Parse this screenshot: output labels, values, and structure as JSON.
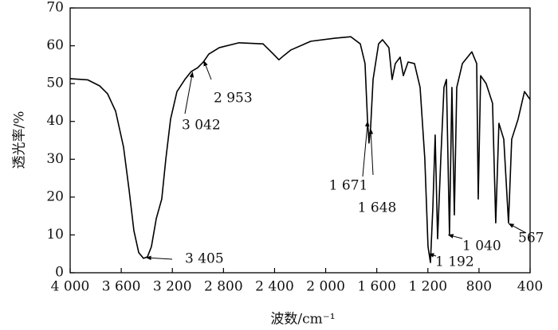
{
  "chart_data": {
    "type": "line",
    "xlabel": "波数/cm⁻¹",
    "ylabel": "透光率/%",
    "xlim": [
      4000,
      400
    ],
    "ylim": [
      0,
      70
    ],
    "xticks": [
      {
        "value": 4000,
        "label": "4 000"
      },
      {
        "value": 3600,
        "label": "3 600"
      },
      {
        "value": 3200,
        "label": "3 200"
      },
      {
        "value": 2800,
        "label": "2 800"
      },
      {
        "value": 2400,
        "label": "2 400"
      },
      {
        "value": 2000,
        "label": "2 000"
      },
      {
        "value": 1600,
        "label": "1 600"
      },
      {
        "value": 1200,
        "label": "1 200"
      },
      800,
      400
    ],
    "yticks": [
      0,
      10,
      20,
      30,
      40,
      50,
      60,
      70
    ],
    "series": [
      {
        "color": "#000000",
        "x": [
          4000,
          3863,
          3769,
          3707,
          3644,
          3582,
          3538,
          3501,
          3463,
          3426,
          3395,
          3364,
          3326,
          3283,
          3251,
          3214,
          3164,
          3102,
          3052,
          3002,
          2958,
          2915,
          2833,
          2678,
          2490,
          2409,
          2366,
          2328,
          2272,
          2116,
          1929,
          1804,
          1729,
          1692,
          1673,
          1661,
          1648,
          1629,
          1586,
          1555,
          1505,
          1480,
          1455,
          1417,
          1392,
          1355,
          1305,
          1261,
          1224,
          1199,
          1180,
          1161,
          1143,
          1124,
          1099,
          1074,
          1055,
          1031,
          1012,
          993,
          974,
          930,
          856,
          818,
          806,
          787,
          744,
          694,
          669,
          644,
          606,
          569,
          544,
          494,
          444,
          400
        ],
        "values": [
          51.3,
          51,
          49.4,
          47.3,
          42.7,
          33.2,
          21.7,
          11.1,
          5.3,
          3.8,
          4.2,
          6.9,
          14.3,
          19.5,
          30.1,
          40.6,
          47.9,
          51.1,
          53.2,
          54.2,
          55.7,
          57.8,
          59.5,
          60.8,
          60.5,
          57.8,
          56.3,
          57.4,
          58.9,
          61.2,
          62,
          62.4,
          60.5,
          55.3,
          40.6,
          34.3,
          38.5,
          51.1,
          60.5,
          61.6,
          59.5,
          51.1,
          55.3,
          57,
          52.1,
          55.7,
          55.3,
          49,
          30.1,
          6.9,
          2.7,
          17.4,
          36.4,
          9,
          30.1,
          49,
          51.1,
          10.1,
          49,
          15.3,
          49,
          55.3,
          58.4,
          55.3,
          19.5,
          52.1,
          50,
          44.8,
          13.2,
          39.5,
          35.3,
          13.2,
          35.3,
          40.6,
          47.9,
          45.8
        ]
      }
    ],
    "annotations": [
      {
        "text": "3 405",
        "x": 3405,
        "y": 4
      },
      {
        "text": "3 042",
        "x": 3042,
        "y": 53
      },
      {
        "text": "2 953",
        "x": 2953,
        "y": 56
      },
      {
        "text": "1 671",
        "x": 1671,
        "y": 40
      },
      {
        "text": "1 648",
        "x": 1648,
        "y": 38
      },
      {
        "text": "1 192",
        "x": 1192,
        "y": 5
      },
      {
        "text": "1 040",
        "x": 1040,
        "y": 10
      },
      {
        "text": "567",
        "x": 567,
        "y": 13
      }
    ]
  }
}
